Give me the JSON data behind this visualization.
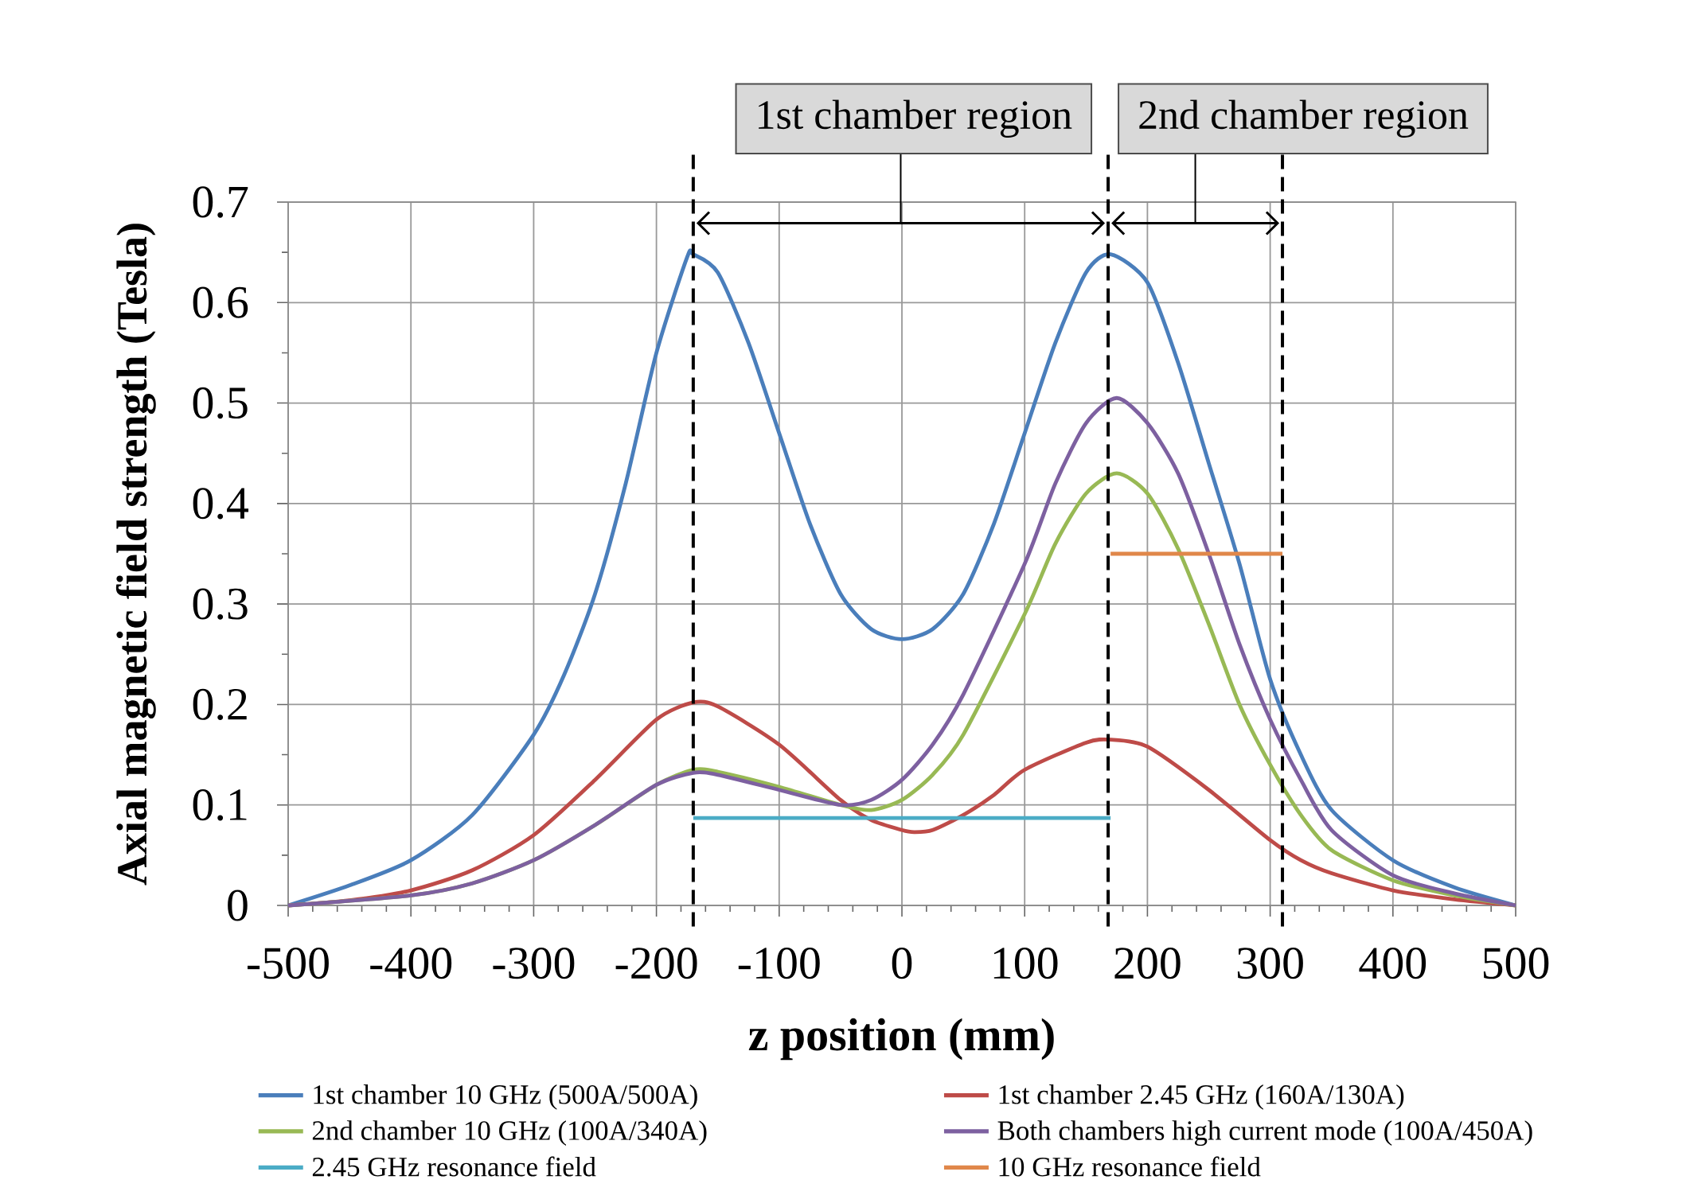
{
  "chart_data": {
    "type": "line",
    "xlabel": "z position (mm)",
    "ylabel": "Axial magnetic field strength (Tesla)",
    "xlim": [
      -500,
      500
    ],
    "ylim": [
      0,
      0.7
    ],
    "xticks": [
      -500,
      -400,
      -300,
      -200,
      -100,
      0,
      100,
      200,
      300,
      400,
      500
    ],
    "yticks": [
      0,
      0.1,
      0.2,
      0.3,
      0.4,
      0.5,
      0.6,
      0.7
    ],
    "grid": true,
    "legend": "bottom",
    "series": [
      {
        "name": "1st chamber 10 GHz (500A/500A)",
        "color": "#4a7ebb",
        "x": [
          -500,
          -450,
          -400,
          -350,
          -300,
          -275,
          -250,
          -225,
          -200,
          -175,
          -170,
          -150,
          -125,
          -100,
          -75,
          -50,
          -25,
          0,
          25,
          50,
          75,
          100,
          125,
          150,
          170,
          200,
          225,
          250,
          275,
          300,
          325,
          350,
          400,
          450,
          500
        ],
        "values": [
          0,
          0.02,
          0.045,
          0.09,
          0.17,
          0.23,
          0.31,
          0.42,
          0.55,
          0.645,
          0.648,
          0.63,
          0.56,
          0.47,
          0.38,
          0.31,
          0.275,
          0.265,
          0.275,
          0.31,
          0.38,
          0.47,
          0.56,
          0.63,
          0.648,
          0.62,
          0.54,
          0.44,
          0.34,
          0.225,
          0.15,
          0.095,
          0.045,
          0.018,
          0
        ]
      },
      {
        "name": "1st chamber 2.45 GHz (160A/130A)",
        "color": "#be4b48",
        "x": [
          -500,
          -450,
          -400,
          -350,
          -300,
          -250,
          -200,
          -170,
          -150,
          -100,
          -50,
          -25,
          0,
          10,
          25,
          50,
          75,
          100,
          150,
          170,
          200,
          250,
          300,
          325,
          350,
          400,
          450,
          500
        ],
        "values": [
          0,
          0.005,
          0.015,
          0.035,
          0.07,
          0.125,
          0.185,
          0.202,
          0.198,
          0.16,
          0.105,
          0.085,
          0.075,
          0.073,
          0.075,
          0.09,
          0.11,
          0.135,
          0.162,
          0.165,
          0.158,
          0.115,
          0.065,
          0.045,
          0.032,
          0.015,
          0.006,
          0
        ]
      },
      {
        "name": "2nd chamber 10 GHz (100A/340A)",
        "color": "#98b954",
        "x": [
          -500,
          -400,
          -350,
          -300,
          -250,
          -200,
          -170,
          -150,
          -100,
          -50,
          -25,
          0,
          25,
          50,
          100,
          125,
          150,
          175,
          200,
          225,
          250,
          275,
          300,
          325,
          350,
          400,
          450,
          500
        ],
        "values": [
          0,
          0.01,
          0.022,
          0.045,
          0.08,
          0.12,
          0.135,
          0.133,
          0.118,
          0.1,
          0.095,
          0.105,
          0.13,
          0.17,
          0.29,
          0.36,
          0.41,
          0.43,
          0.41,
          0.355,
          0.28,
          0.2,
          0.14,
          0.09,
          0.055,
          0.025,
          0.01,
          0
        ]
      },
      {
        "name": "Both chambers high current mode (100A/450A)",
        "color": "#7d60a0",
        "x": [
          -500,
          -400,
          -350,
          -300,
          -250,
          -200,
          -170,
          -150,
          -100,
          -50,
          -25,
          0,
          25,
          50,
          100,
          125,
          150,
          175,
          200,
          225,
          250,
          275,
          300,
          325,
          350,
          400,
          450,
          500
        ],
        "values": [
          0,
          0.01,
          0.022,
          0.045,
          0.08,
          0.12,
          0.132,
          0.13,
          0.115,
          0.1,
          0.105,
          0.125,
          0.16,
          0.21,
          0.34,
          0.42,
          0.48,
          0.505,
          0.48,
          0.43,
          0.35,
          0.26,
          0.185,
          0.125,
          0.075,
          0.03,
          0.012,
          0
        ]
      },
      {
        "name": "2.45 GHz resonance field",
        "color": "#4bacc6",
        "x": [
          -170,
          170
        ],
        "values": [
          0.087,
          0.087
        ]
      },
      {
        "name": "10 GHz resonance field",
        "color": "#e0874a",
        "x": [
          170,
          310
        ],
        "values": [
          0.35,
          0.35
        ]
      }
    ],
    "ref_lines": [
      {
        "axis": "x",
        "value": -170,
        "color": "#000000",
        "line_style": "dashed"
      },
      {
        "axis": "x",
        "value": 168,
        "color": "#000000",
        "line_style": "dashed"
      },
      {
        "axis": "x",
        "value": 310,
        "color": "#000000",
        "line_style": "dashed"
      }
    ],
    "annotations": [
      "1st chamber region",
      "2nd chamber region"
    ]
  }
}
